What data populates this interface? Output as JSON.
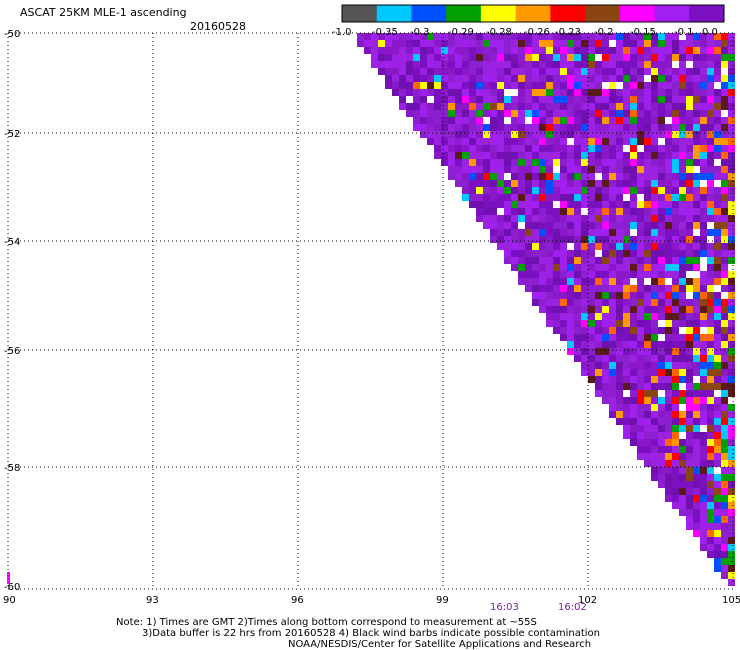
{
  "title": "ASCAT 25KM MLE-1 ascending",
  "date": "20160528",
  "colorbar": {
    "colors": [
      "#555555",
      "#00c8ff",
      "#0050ff",
      "#00a000",
      "#ffff00",
      "#ff9900",
      "#ff0000",
      "#8b4513",
      "#ff00ff",
      "#a020f0",
      "#7a10c0"
    ],
    "labels": [
      "-1.0",
      "-0.35",
      "-0.3",
      "-0.29",
      "-0.28",
      "-0.26",
      "-0.23",
      "-0.2",
      "-0.15",
      "-0.1",
      "0.0"
    ]
  },
  "axes": {
    "lon_ticks": [
      "90",
      "93",
      "96",
      "99",
      "102",
      "105"
    ],
    "lat_ticks": [
      "-50",
      "-52",
      "-54",
      "-56",
      "-58",
      "-60"
    ],
    "lon_range": [
      90,
      105
    ],
    "lat_range": [
      -60,
      -50
    ]
  },
  "time_labels": [
    "16:03",
    "16:02"
  ],
  "notes": [
    "Note: 1) Times are GMT 2)Times along bottom correspond to measurement at ~55S",
    "3)Data buffer is 22 hrs from 20160528 4) Black wind barbs indicate possible contamination",
    "NOAA/NESDIS/Center for Satellite Applications and Research"
  ]
}
